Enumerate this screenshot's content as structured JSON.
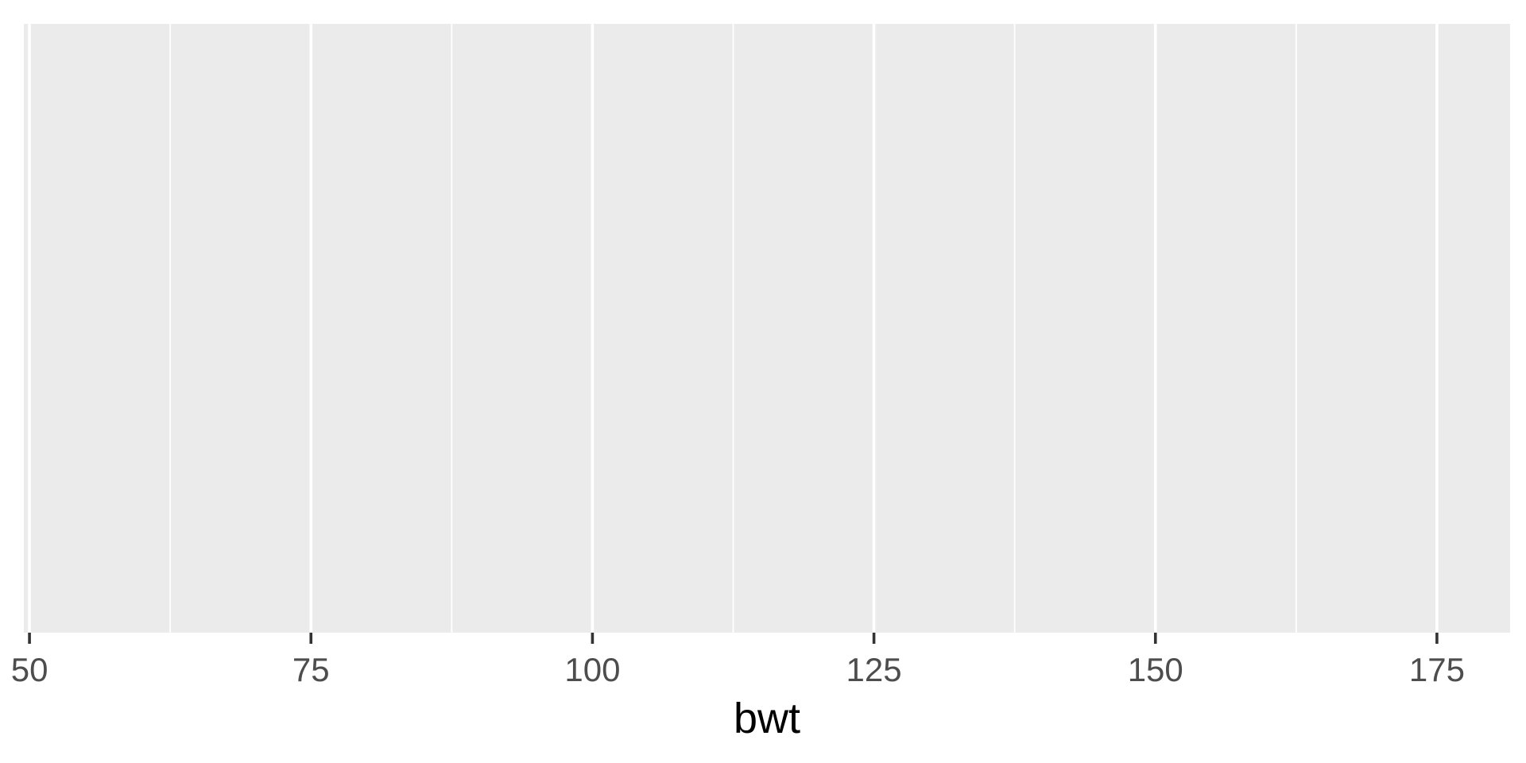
{
  "chart_data": {
    "type": "bar",
    "title": "",
    "xlabel": "bwt",
    "ylabel": "",
    "xlim": [
      49.5,
      181.5
    ],
    "x_major_ticks": [
      50,
      75,
      100,
      125,
      150,
      175
    ],
    "x_tick_labels": [
      "50",
      "75",
      "100",
      "125",
      "150",
      "175"
    ],
    "x_minor_ticks": [
      62.5,
      87.5,
      112.5,
      137.5,
      162.5
    ],
    "y_ticks": [],
    "values": [],
    "grid": true,
    "legend": "none",
    "colors": {
      "panel": "#EBEBEB",
      "grid": "#FFFFFF",
      "tick": "#333333",
      "tick_label": "#4D4D4D",
      "axis_title": "#000000"
    }
  }
}
